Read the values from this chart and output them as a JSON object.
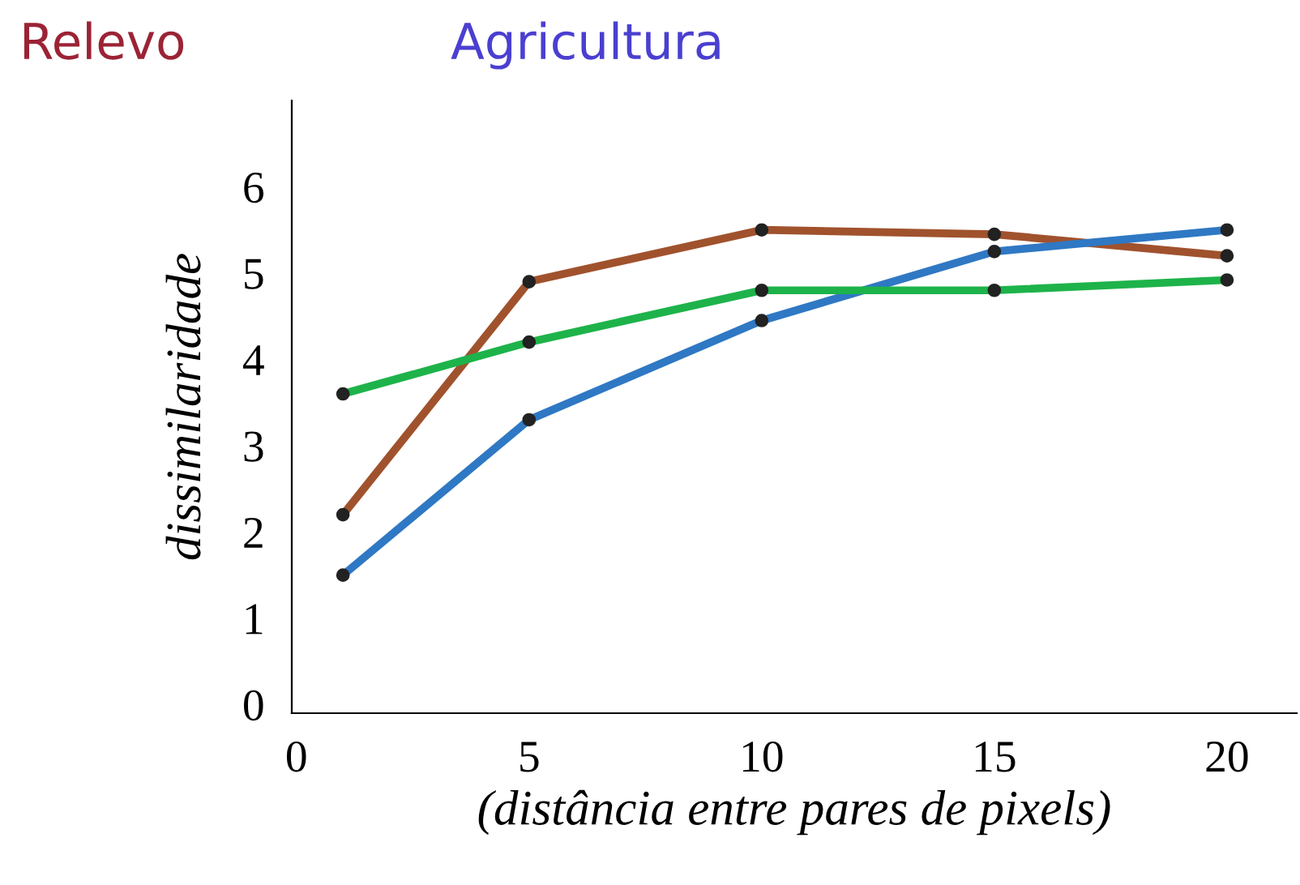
{
  "chart_data": {
    "type": "line",
    "title": "Relevo",
    "subtitle": "Agricultura",
    "xlabel": "(distância entre pares de pixels)",
    "ylabel": "dissimilaridade",
    "x": [
      1,
      5,
      10,
      15,
      20
    ],
    "series": [
      {
        "color": "#a0522d",
        "values": [
          2.2,
          4.9,
          5.5,
          5.45,
          5.2
        ]
      },
      {
        "color": "#2f78c4",
        "values": [
          1.5,
          3.3,
          4.45,
          5.25,
          5.5
        ]
      },
      {
        "color": "#1db34a",
        "values": [
          3.6,
          4.2,
          4.8,
          4.8,
          4.92
        ]
      }
    ],
    "xlim": [
      -0.1,
      21.5
    ],
    "ylim": [
      -0.1,
      7.0
    ],
    "xticks": [
      0,
      5,
      10,
      15,
      20
    ],
    "yticks": [
      0,
      1,
      2,
      3,
      4,
      5,
      6
    ],
    "grid": false,
    "legend": false,
    "marker": "circle",
    "line_style": "solid"
  }
}
